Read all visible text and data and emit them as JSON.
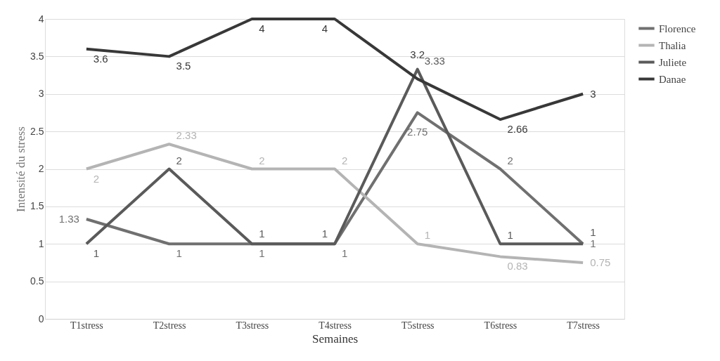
{
  "chart_data": {
    "type": "line",
    "xlabel": "Semaines",
    "ylabel": "Intensité du stress",
    "categories": [
      "T1stress",
      "T2stress",
      "T3stress",
      "T4stress",
      "T5stress",
      "T6stress",
      "T7stress"
    ],
    "series": [
      {
        "name": "Florence",
        "color": "#707070",
        "values": [
          1.33,
          1,
          1,
          1,
          2.75,
          2,
          1
        ]
      },
      {
        "name": "Thalia",
        "color": "#b4b4b4",
        "values": [
          2,
          2.33,
          2,
          2,
          1,
          0.83,
          0.75
        ]
      },
      {
        "name": "Juliete",
        "color": "#5a5a5a",
        "values": [
          1,
          2,
          1,
          1,
          3.33,
          1,
          1
        ]
      },
      {
        "name": "Danae",
        "color": "#383838",
        "values": [
          3.6,
          3.5,
          4,
          4,
          3.2,
          2.66,
          3
        ]
      }
    ],
    "ylim": [
      0,
      4
    ],
    "yticks": [
      {
        "value": 0,
        "label": "0"
      },
      0.5,
      {
        "value": 1,
        "label": "1"
      },
      1.5,
      {
        "value": 2,
        "label": "2"
      },
      2.5,
      {
        "value": 3,
        "label": "3"
      },
      3.5,
      {
        "value": 4,
        "label": "4"
      }
    ],
    "grid": "y",
    "legend": "right",
    "data_labels": true,
    "marker": "none",
    "line_style": "solid"
  }
}
